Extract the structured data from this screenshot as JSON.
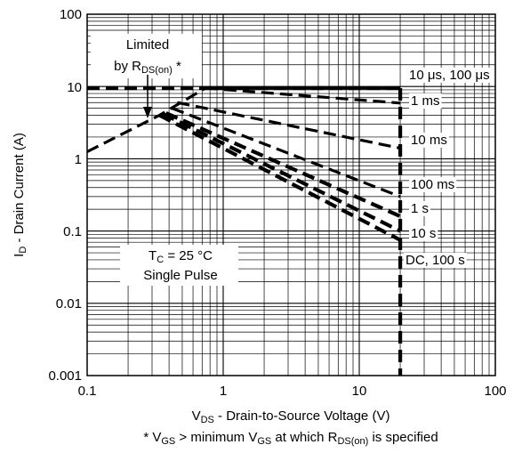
{
  "chart_data": {
    "type": "line",
    "title": "",
    "xscale": "log",
    "yscale": "log",
    "xlim": [
      0.1,
      100
    ],
    "ylim": [
      0.001,
      100
    ],
    "grid": true,
    "x_ticks": [
      "0.1",
      "1",
      "10",
      "100"
    ],
    "y_ticks": [
      "100",
      "10",
      "1",
      "0.1",
      "0.01",
      "0.001"
    ],
    "xlabel": {
      "main": "V",
      "sub": "DS",
      "rest": " - Drain-to-Source Voltage (V)"
    },
    "ylabel": {
      "main": "I",
      "sub": "D",
      "rest": " - Drain Current (A)"
    },
    "footnote": {
      "p1": "* V",
      "s1": "GS",
      "p2": " >  minimum V",
      "s2": "GS",
      "p3": " at which R",
      "s3": "DS(on)",
      "p4": " is specified"
    },
    "annotations": {
      "limited_line1": "Limited",
      "limited_line2_main": "by R",
      "limited_line2_sub": "DS(on)",
      "limited_line2_tail": " *",
      "tc_main": "T",
      "tc_sub": "C",
      "tc_tail": " = 25 °C",
      "pulse": "Single Pulse"
    },
    "series": [
      {
        "name": "10 μs, 100 μs",
        "points": [
          [
            0.74,
            9.5
          ],
          [
            20,
            9.5
          ]
        ]
      },
      {
        "name": "1 ms",
        "points": [
          [
            0.74,
            9.5
          ],
          [
            20,
            5.9
          ]
        ]
      },
      {
        "name": "10 ms",
        "points": [
          [
            0.46,
            6.0
          ],
          [
            20,
            1.4
          ]
        ]
      },
      {
        "name": "100 ms",
        "points": [
          [
            0.42,
            5.0
          ],
          [
            20,
            0.3
          ]
        ]
      },
      {
        "name": "1 s",
        "points": [
          [
            0.38,
            4.3
          ],
          [
            20,
            0.16
          ]
        ]
      },
      {
        "name": "10 s",
        "points": [
          [
            0.36,
            4.2
          ],
          [
            20,
            0.1
          ]
        ]
      },
      {
        "name": "DC, 100 s",
        "points": [
          [
            0.34,
            4.0
          ],
          [
            20,
            0.075
          ]
        ]
      }
    ],
    "rds_limit": {
      "points": [
        [
          0.1,
          1.25
        ],
        [
          0.34,
          4.0
        ],
        [
          0.74,
          9.5
        ]
      ]
    },
    "current_limit": {
      "points": [
        [
          0.1,
          9.5
        ],
        [
          20,
          9.5
        ]
      ]
    },
    "voltage_limit": {
      "points": [
        [
          20,
          9.5
        ],
        [
          20,
          0.001
        ]
      ]
    }
  }
}
